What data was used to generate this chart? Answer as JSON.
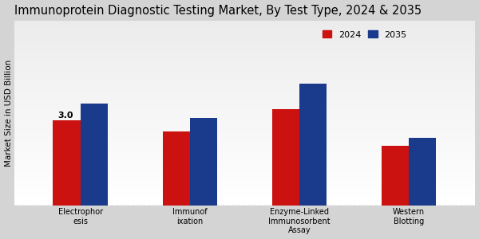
{
  "title": "Immunoprotein Diagnostic Testing Market, By Test Type, 2024 & 2035",
  "ylabel": "Market Size in USD Billion",
  "categories": [
    "Electrophor\nesis",
    "Immunof\nixation",
    "Enzyme-Linked\nImmunosorbent\nAssay",
    "Western\nBlotting"
  ],
  "values_2024": [
    3.0,
    2.6,
    3.4,
    2.1
  ],
  "values_2035": [
    3.6,
    3.1,
    4.3,
    2.4
  ],
  "color_2024": "#cc1111",
  "color_2035": "#1a3a8c",
  "annotation_label": "3.0",
  "background_color_top": "#d8d8d8",
  "background_color_bottom": "#f5f5f5",
  "title_fontsize": 10.5,
  "label_fontsize": 7,
  "legend_labels": [
    "2024",
    "2035"
  ],
  "bar_width": 0.25,
  "ylim": [
    0,
    6.5
  ],
  "dashed_line_y": 0
}
